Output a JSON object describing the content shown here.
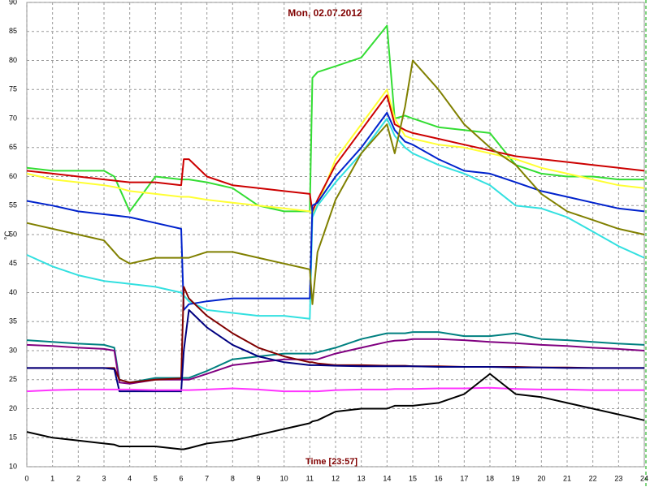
{
  "chart_data": {
    "type": "line",
    "title": "Mon, 02.07.2012",
    "xlabel": "Time [23:57]",
    "ylabel": "°C",
    "x": [
      0,
      1,
      2,
      3,
      3.4,
      3.6,
      4,
      5,
      6,
      6.1,
      6.3,
      7,
      8,
      9,
      10,
      11,
      11.1,
      11.3,
      12,
      13,
      14,
      14.3,
      14.7,
      15,
      16,
      17,
      18,
      19,
      20,
      21,
      22,
      23,
      24
    ],
    "xlim": [
      0,
      24
    ],
    "xticks": [
      0,
      1,
      2,
      3,
      4,
      5,
      6,
      7,
      8,
      9,
      10,
      11,
      12,
      13,
      14,
      15,
      16,
      17,
      18,
      19,
      20,
      21,
      22,
      23,
      24
    ],
    "ylim": [
      10,
      90
    ],
    "yticks": [
      10,
      15,
      20,
      25,
      30,
      35,
      40,
      45,
      50,
      55,
      60,
      65,
      70,
      75,
      80,
      85,
      90
    ],
    "grid": true,
    "series": [
      {
        "color": "#33dd33",
        "values": [
          61.5,
          61,
          61,
          61,
          60,
          58,
          54,
          60,
          59.5,
          59.5,
          59.5,
          59,
          58,
          55,
          54,
          54,
          77,
          78,
          79,
          80.5,
          86,
          70,
          70.5,
          70,
          68.5,
          68,
          67.5,
          62,
          60.5,
          60,
          60,
          59.5,
          59.5
        ]
      },
      {
        "color": "#ffff33",
        "values": [
          60.5,
          59.5,
          59,
          58.5,
          58.2,
          58,
          57.5,
          57,
          56.5,
          56.5,
          56.5,
          56,
          55.5,
          55,
          54.5,
          54,
          53.5,
          55,
          63,
          69,
          75,
          70,
          67,
          66.5,
          65.5,
          65,
          64,
          63,
          61.5,
          60.5,
          59.5,
          58.5,
          58
        ]
      },
      {
        "color": "#cc0000",
        "values": [
          61,
          60.5,
          60,
          59.5,
          59.3,
          59.2,
          59,
          59,
          58.5,
          63,
          63,
          60,
          58.5,
          58,
          57.5,
          57,
          54,
          56,
          62,
          68,
          74,
          69,
          68,
          67.5,
          66.5,
          65.5,
          64.5,
          63.5,
          63,
          62.5,
          62,
          61.5,
          61
        ]
      },
      {
        "color": "#33e0e0",
        "values": [
          46.5,
          44.5,
          43,
          42,
          41.8,
          41.7,
          41.5,
          41,
          40,
          39.5,
          38.5,
          37,
          36.5,
          36,
          36,
          35.5,
          53,
          55,
          59,
          64,
          70,
          67,
          65,
          64,
          62,
          60.5,
          58.5,
          55,
          54.5,
          53,
          50.5,
          48,
          46
        ]
      },
      {
        "color": "#0022cc",
        "values": [
          55.8,
          55,
          54,
          53.5,
          53.3,
          53.2,
          53,
          52,
          51,
          37,
          38,
          38.5,
          39,
          39,
          39,
          39,
          55,
          55.5,
          60,
          65,
          71,
          68,
          66,
          65.5,
          63,
          61,
          60.5,
          59,
          57.5,
          56.5,
          55.5,
          54.5,
          54
        ]
      },
      {
        "color": "#808000",
        "values": [
          52,
          51,
          50,
          49,
          47,
          46,
          45,
          46,
          46,
          46,
          46,
          47,
          47,
          46,
          45,
          44,
          38,
          47,
          56,
          64,
          69,
          64,
          72,
          80,
          75,
          69,
          65,
          62,
          57,
          54,
          52.5,
          51,
          50
        ]
      },
      {
        "color": "#008080",
        "values": [
          31.8,
          31.5,
          31.2,
          31,
          30.5,
          25,
          24.5,
          25.3,
          25.3,
          25.3,
          25.3,
          26.5,
          28.5,
          29,
          29.5,
          29.5,
          29.5,
          29.7,
          30.5,
          32,
          33,
          33,
          33,
          33.2,
          33.2,
          32.5,
          32.5,
          33,
          32,
          31.8,
          31.5,
          31.2,
          31
        ]
      },
      {
        "color": "#800080",
        "values": [
          31,
          30.8,
          30.5,
          30.3,
          30,
          24.5,
          24.3,
          25,
          25,
          25,
          25,
          26,
          27.5,
          28,
          28.5,
          28.5,
          28.5,
          28.5,
          29.5,
          30.5,
          31.5,
          31.7,
          31.8,
          32,
          32,
          31.8,
          31.5,
          31.3,
          31,
          30.8,
          30.5,
          30.3,
          30
        ]
      },
      {
        "color": "#800000",
        "values": [
          27,
          27,
          27,
          27,
          27,
          25,
          24.5,
          25,
          25.2,
          41,
          39,
          36,
          33,
          30.5,
          29,
          28,
          28,
          27.8,
          27.5,
          27.5,
          27.4,
          27.4,
          27.4,
          27.3,
          27.3,
          27.2,
          27.2,
          27.2,
          27.1,
          27.1,
          27,
          27,
          27
        ]
      },
      {
        "color": "#000080",
        "values": [
          27,
          27,
          27,
          27,
          26.8,
          23,
          23,
          23,
          23,
          30,
          37,
          34,
          31,
          29,
          28,
          27.5,
          27.5,
          27.5,
          27.4,
          27.3,
          27.3,
          27.3,
          27.3,
          27.3,
          27.2,
          27.2,
          27.2,
          27.1,
          27.1,
          27,
          27,
          27,
          27
        ]
      },
      {
        "color": "#ff33ff",
        "values": [
          23,
          23.2,
          23.3,
          23.3,
          23.3,
          23.3,
          23.3,
          23.2,
          23.2,
          23.2,
          23.2,
          23.3,
          23.5,
          23.3,
          23,
          23,
          23,
          23,
          23.2,
          23.3,
          23.3,
          23.4,
          23.4,
          23.4,
          23.5,
          23.5,
          23.6,
          23.4,
          23.3,
          23.3,
          23.2,
          23.2,
          23.2
        ]
      },
      {
        "color": "#000000",
        "values": [
          16,
          15,
          14.5,
          14,
          13.8,
          13.5,
          13.5,
          13.5,
          13,
          13,
          13.2,
          14,
          14.5,
          15.5,
          16.5,
          17.5,
          17.8,
          18,
          19.5,
          20,
          20,
          20.5,
          20.5,
          20.5,
          21,
          22.5,
          26,
          22.5,
          22,
          21,
          20,
          19,
          18
        ]
      }
    ]
  }
}
